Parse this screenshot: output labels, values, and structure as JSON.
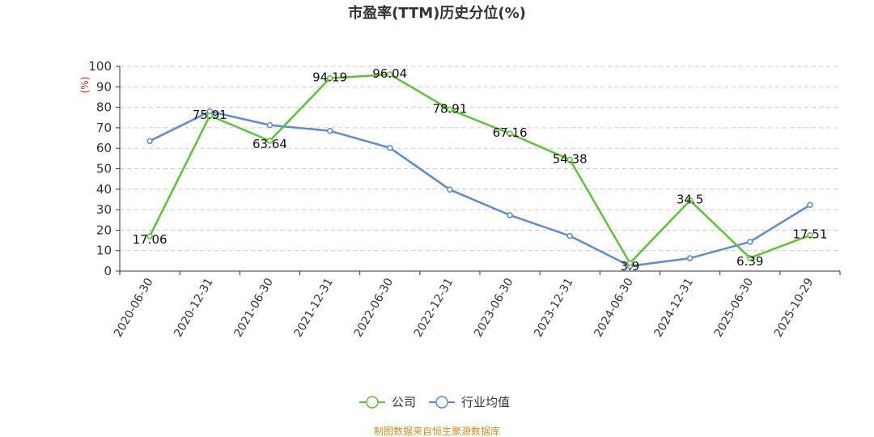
{
  "chart_data": {
    "type": "line",
    "title": "市盈率(TTM)历史分位(%)",
    "ylabel": "(%)",
    "ylim": [
      0,
      100
    ],
    "yticks": [
      0,
      10,
      20,
      30,
      40,
      50,
      60,
      70,
      80,
      90,
      100
    ],
    "grid": "horizontal-dashed",
    "legend_position": "bottom-center",
    "categories": [
      "2020-06-30",
      "2020-12-31",
      "2021-06-30",
      "2021-12-31",
      "2022-06-30",
      "2022-12-31",
      "2023-06-30",
      "2023-12-31",
      "2024-06-30",
      "2024-12-31",
      "2025-06-30",
      "2025-10-29"
    ],
    "series": [
      {
        "name": "公司",
        "color": "#5cc531",
        "values": [
          17.06,
          75.91,
          63.64,
          94.19,
          96.04,
          78.91,
          67.16,
          54.38,
          3.9,
          34.5,
          6.39,
          17.51
        ],
        "labels": [
          "17.06",
          "75.91",
          "63.64",
          "94.19",
          "96.04",
          "78.91",
          "67.16",
          "54.38",
          "3.9",
          "34.5",
          "6.39",
          "17.51"
        ]
      },
      {
        "name": "行业均值",
        "color": "#5b8bd9",
        "values": [
          63.5,
          78.0,
          71.3,
          68.5,
          60.2,
          39.8,
          27.3,
          17.2,
          2.5,
          6.3,
          14.3,
          32.3
        ]
      }
    ]
  },
  "source": {
    "text": "制图数据来自恒生聚源数据库",
    "color": "#d98e1c"
  }
}
